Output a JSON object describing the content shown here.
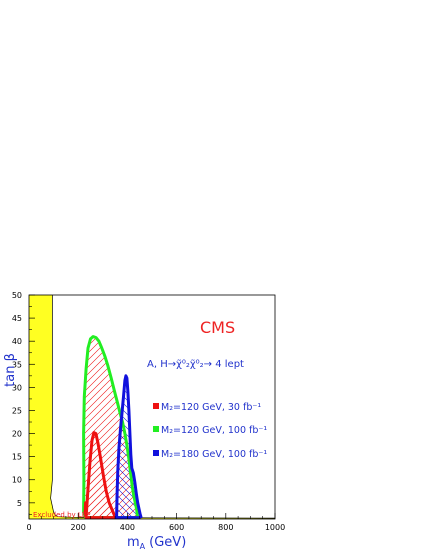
{
  "chart_data": {
    "type": "area",
    "xlabel": "m",
    "xlabel_sub": "A",
    "xlabel_unit": "(GeV)",
    "ylabel": "tan β",
    "xlim": [
      0,
      1000
    ],
    "ylim": [
      1.5,
      50
    ],
    "xticks": [
      0,
      200,
      400,
      600,
      800,
      1000
    ],
    "yticks": [
      5,
      10,
      15,
      20,
      25,
      30,
      35,
      40,
      45,
      50
    ],
    "annotations": {
      "experiment": "CMS",
      "process": "A, H→χ̃⁰₂χ̃⁰₂→ 4 lept",
      "excluded": "Excluded by LEP"
    },
    "colors": {
      "excluded": "#ffff22",
      "green": "#22ee22",
      "red": "#ee1111",
      "blue": "#1111dd",
      "axis_text": "#2233cc"
    },
    "lep_excluded_boundary": {
      "x": [
        0,
        95,
        95,
        88,
        92,
        100,
        106,
        113,
        120,
        160,
        220,
        350,
        500,
        1000
      ],
      "y": [
        50,
        50,
        10,
        6,
        5,
        3,
        2.4,
        2.1,
        2.0,
        1.9,
        1.85,
        1.8,
        1.75,
        1.7
      ]
    },
    "series": [
      {
        "name": "M₂=120 GeV, 30 fb⁻¹",
        "color": "#ee1111",
        "x": [
          232,
          240,
          248,
          256,
          264,
          272,
          280,
          290,
          302,
          314,
          326,
          338,
          347,
          351,
          348,
          300,
          232,
          228,
          230,
          232
        ],
        "y": [
          2,
          8,
          14,
          18.5,
          20.2,
          20,
          18,
          15,
          11,
          7.5,
          5,
          3.5,
          2.3,
          2,
          1.8,
          1.8,
          1.8,
          3,
          5,
          2
        ]
      },
      {
        "name": "M₂=120 GeV, 100 fb⁻¹",
        "color": "#22ee22",
        "x": [
          223,
          222,
          225,
          232,
          240,
          250,
          260,
          272,
          284,
          296,
          308,
          320,
          334,
          346,
          358,
          370,
          380,
          390,
          398,
          406,
          414,
          420,
          426,
          430,
          434,
          438,
          440,
          442,
          436,
          300,
          230,
          222,
          223
        ],
        "y": [
          10,
          20,
          28,
          34,
          38.5,
          40.5,
          41,
          40.8,
          40,
          38.5,
          36.8,
          34.8,
          32,
          29.5,
          27,
          24.5,
          22.5,
          20,
          17.5,
          14.5,
          11,
          8.5,
          6.5,
          5.5,
          4.5,
          3.5,
          2.5,
          2,
          1.8,
          1.8,
          1.8,
          3,
          10
        ]
      },
      {
        "name": "M₂=180 GeV, 100 fb⁻¹",
        "color": "#1111dd",
        "x": [
          356,
          358,
          361,
          366,
          372,
          378,
          384,
          390,
          394,
          398,
          402,
          406,
          410,
          414,
          418,
          424,
          430,
          436,
          442,
          448,
          452,
          455,
          445,
          380,
          355,
          356
        ],
        "y": [
          2,
          7,
          12,
          17,
          21,
          24.5,
          28,
          31.5,
          32.5,
          32,
          29,
          25,
          20,
          15.5,
          12.5,
          11.5,
          9.5,
          7,
          5,
          3.5,
          2.5,
          2,
          1.8,
          1.8,
          1.8,
          2
        ]
      }
    ]
  }
}
